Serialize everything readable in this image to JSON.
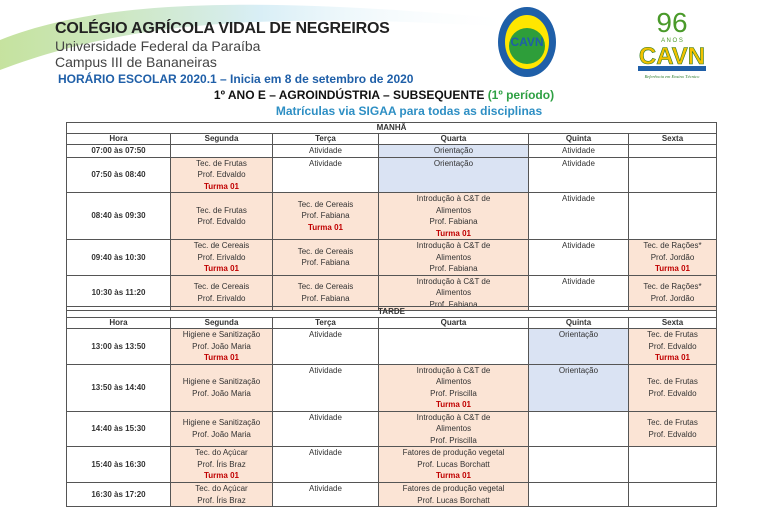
{
  "header": {
    "school": "COLÉGIO AGRÍCOLA VIDAL DE NEGREIROS",
    "university": "Universidade Federal da Paraíba",
    "campus": "Campus III de Bananeiras",
    "schedule": "HORÁRIO ESCOLAR 2020.1 – Inicia em 8 de setembro de 2020",
    "title": "1º ANO E – AGROINDÚSTRIA – SUBSEQUENTE",
    "period": "(1º período)",
    "subtitle": "Matrículas via SIGAA para todas as disciplinas",
    "logo1_text": "CAVN",
    "logo2_text": "96 ANOS CAVN",
    "colors": {
      "peach": "#fbe4d5",
      "blue": "#dae3f3",
      "turma": "#c00000",
      "schedule": "#1f5fa8",
      "subtitle": "#2e8fc4",
      "period": "#2ea043"
    }
  },
  "columns": [
    "Hora",
    "Segunda",
    "Terça",
    "Quarta",
    "Quinta",
    "Sexta"
  ],
  "sections": [
    {
      "name": "MANHÃ",
      "rows": [
        {
          "hora": "07:00 às 07:50",
          "h": 11,
          "cells": [
            {},
            {
              "lines": [
                "Atividade"
              ]
            },
            {
              "lines": [
                "Orientação"
              ],
              "bg": "blue"
            },
            {
              "lines": [
                "Atividade"
              ]
            },
            {}
          ]
        },
        {
          "hora": "07:50 às 08:40",
          "h": 35,
          "cells": [
            {
              "lines": [
                "Tec. de Frutas",
                "Prof. Edvaldo"
              ],
              "turma": "Turma 01",
              "bg": "peach"
            },
            {
              "lines": [
                "Atividade"
              ]
            },
            {
              "lines": [
                "Orientação"
              ],
              "bg": "blue"
            },
            {
              "lines": [
                "Atividade"
              ]
            },
            {}
          ]
        },
        {
          "hora": "08:40 às 09:30",
          "h": 46,
          "cells": [
            {
              "lines": [
                "Tec. de Frutas",
                "Prof. Edvaldo"
              ],
              "bg": "peach"
            },
            {
              "lines": [
                "Tec. de Cereais",
                "Prof. Fabiana"
              ],
              "turma": "Turma 01",
              "bg": "peach"
            },
            {
              "lines": [
                "Introdução à C&T de",
                "Alimentos",
                "Prof. Fabiana"
              ],
              "turma": "Turma 01",
              "bg": "peach"
            },
            {
              "lines": [
                "Atividade"
              ]
            },
            {}
          ]
        },
        {
          "hora": "09:40 às 10:30",
          "h": 35,
          "cells": [
            {
              "lines": [
                "Tec. de Cereais",
                "Prof. Erivaldo"
              ],
              "turma": "Turma 01",
              "bg": "peach"
            },
            {
              "lines": [
                "Tec. de Cereais",
                "Prof. Fabiana"
              ],
              "bg": "peach"
            },
            {
              "lines": [
                "Introdução à C&T de",
                "Alimentos",
                "Prof. Fabiana"
              ],
              "bg": "peach"
            },
            {
              "lines": [
                "Atividade"
              ]
            },
            {
              "lines": [
                "Tec. de Rações*",
                "Prof. Jordão"
              ],
              "turma": "Turma 01",
              "bg": "peach"
            }
          ]
        },
        {
          "hora": "10:30 às 11:20",
          "h": 34,
          "cells": [
            {
              "lines": [
                "Tec. de Cereais",
                "Prof. Erivaldo"
              ],
              "bg": "peach"
            },
            {
              "lines": [
                "Tec. de Cereais",
                "Prof. Fabiana"
              ],
              "bg": "peach"
            },
            {
              "lines": [
                "Introdução à C&T de",
                "Alimentos",
                "Prof. Fabiana"
              ],
              "bg": "peach"
            },
            {
              "lines": [
                "Atividade"
              ]
            },
            {
              "lines": [
                "Tec. de Rações*",
                "Prof. Jordão"
              ],
              "bg": "peach"
            }
          ]
        }
      ]
    },
    {
      "name": "TARDE",
      "rows": [
        {
          "hora": "13:00 às 13:50",
          "h": 35,
          "cells": [
            {
              "lines": [
                "Higiene e Sanitização",
                "Prof. João Maria"
              ],
              "turma": "Turma 01",
              "bg": "peach"
            },
            {
              "lines": [
                "Atividade"
              ]
            },
            {},
            {
              "lines": [
                "Orientação"
              ],
              "bg": "blue"
            },
            {
              "lines": [
                "Tec. de Frutas",
                "Prof. Edvaldo"
              ],
              "turma": "Turma 01",
              "bg": "peach"
            }
          ]
        },
        {
          "hora": "13:50 às 14:40",
          "h": 46,
          "cells": [
            {
              "lines": [
                "Higiene e Sanitização",
                "Prof. João Maria"
              ],
              "bg": "peach"
            },
            {
              "lines": [
                "Atividade"
              ]
            },
            {
              "lines": [
                "Introdução à C&T de",
                "Alimentos",
                "Prof. Priscilla"
              ],
              "turma": "Turma 01",
              "bg": "peach"
            },
            {
              "lines": [
                "Orientação"
              ],
              "bg": "blue"
            },
            {
              "lines": [
                "Tec. de Frutas",
                "Prof. Edvaldo"
              ],
              "bg": "peach"
            }
          ]
        },
        {
          "hora": "14:40 às 15:30",
          "h": 34,
          "cells": [
            {
              "lines": [
                "Higiene e Sanitização",
                "Prof. João Maria"
              ],
              "bg": "peach"
            },
            {
              "lines": [
                "Atividade"
              ]
            },
            {
              "lines": [
                "Introdução à C&T de",
                "Alimentos",
                "Prof. Priscilla"
              ],
              "bg": "peach"
            },
            {},
            {
              "lines": [
                "Tec. de Frutas",
                "Prof. Edvaldo"
              ],
              "bg": "peach"
            }
          ]
        },
        {
          "hora": "15:40 às 16:30",
          "h": 36,
          "cells": [
            {
              "lines": [
                "Tec. do Açúcar",
                "Prof. Íris Braz"
              ],
              "turma": "Turma 01",
              "bg": "peach"
            },
            {
              "lines": [
                "Atividade"
              ]
            },
            {
              "lines": [
                "Fatores de produção vegetal",
                "Prof. Lucas Borchatt"
              ],
              "turma": "Turma 01",
              "bg": "peach"
            },
            {},
            {}
          ]
        },
        {
          "hora": "16:30 às 17:20",
          "h": 24,
          "cells": [
            {
              "lines": [
                "Tec. do Açúcar",
                "Prof. Íris Braz"
              ],
              "bg": "peach"
            },
            {
              "lines": [
                "Atividade"
              ]
            },
            {
              "lines": [
                "Fatores de produção vegetal",
                "Prof. Lucas Borchatt"
              ],
              "bg": "peach"
            },
            {},
            {}
          ]
        }
      ]
    }
  ]
}
